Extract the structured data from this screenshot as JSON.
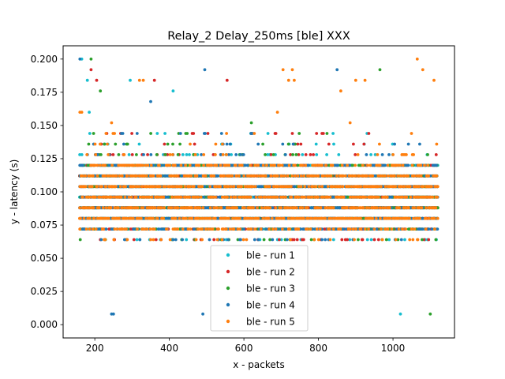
{
  "chart_data": {
    "type": "scatter",
    "title": "Relay_2 Delay_250ms [ble] XXX",
    "xlabel": "x - packets",
    "ylabel": "y - latency (s)",
    "xlim": [
      115,
      1165
    ],
    "ylim": [
      -0.01,
      0.21
    ],
    "xticks": [
      200,
      400,
      600,
      800,
      1000
    ],
    "yticks": [
      0.0,
      0.025,
      0.05,
      0.075,
      0.1,
      0.125,
      0.15,
      0.175,
      0.2
    ],
    "ytick_labels": [
      "0.000",
      "0.025",
      "0.050",
      "0.075",
      "0.100",
      "0.125",
      "0.150",
      "0.175",
      "0.200"
    ],
    "grid": false,
    "legend_position": "lower center",
    "x_range": [
      160,
      1120
    ],
    "latency_levels": [
      0.064,
      0.072,
      0.08,
      0.088,
      0.096,
      0.104,
      0.112,
      0.12,
      0.128,
      0.136,
      0.144
    ],
    "series": [
      {
        "name": "ble - run 1",
        "color": "#17becf",
        "outliers": [
          [
            165,
            0.2
          ],
          [
            180,
            0.184
          ],
          [
            185,
            0.16
          ],
          [
            295,
            0.184
          ],
          [
            410,
            0.176
          ],
          [
            1020,
            0.008
          ]
        ]
      },
      {
        "name": "ble - run 2",
        "color": "#d62728",
        "outliers": [
          [
            190,
            0.192
          ],
          [
            205,
            0.184
          ],
          [
            360,
            0.184
          ],
          [
            555,
            0.184
          ],
          [
            795,
            0.144
          ],
          [
            935,
            0.144
          ]
        ]
      },
      {
        "name": "ble - run 3",
        "color": "#2ca02c",
        "outliers": [
          [
            190,
            0.2
          ],
          [
            215,
            0.176
          ],
          [
            620,
            0.152
          ],
          [
            965,
            0.192
          ],
          [
            1100,
            0.008
          ],
          [
            1115,
            0.064
          ]
        ]
      },
      {
        "name": "ble - run 4",
        "color": "#1f77b4",
        "outliers": [
          [
            160,
            0.2
          ],
          [
            245,
            0.008
          ],
          [
            250,
            0.008
          ],
          [
            350,
            0.168
          ],
          [
            495,
            0.192
          ],
          [
            490,
            0.008
          ],
          [
            850,
            0.192
          ]
        ]
      },
      {
        "name": "ble - run 5",
        "color": "#ff7f0e",
        "outliers": [
          [
            160,
            0.16
          ],
          [
            165,
            0.16
          ],
          [
            245,
            0.152
          ],
          [
            320,
            0.184
          ],
          [
            330,
            0.184
          ],
          [
            705,
            0.192
          ],
          [
            720,
            0.184
          ],
          [
            735,
            0.184
          ],
          [
            730,
            0.192
          ],
          [
            860,
            0.176
          ],
          [
            885,
            0.152
          ],
          [
            900,
            0.184
          ],
          [
            925,
            0.184
          ],
          [
            1065,
            0.2
          ],
          [
            1080,
            0.192
          ],
          [
            1110,
            0.184
          ],
          [
            690,
            0.16
          ]
        ]
      }
    ]
  }
}
